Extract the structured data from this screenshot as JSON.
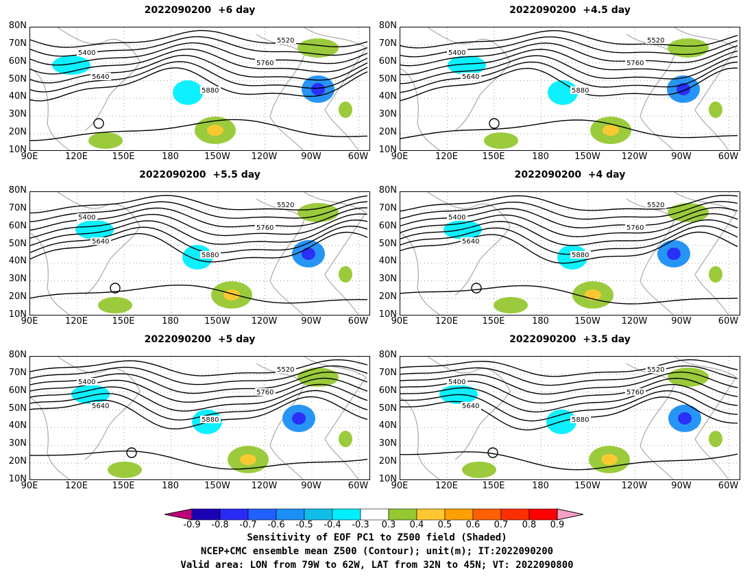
{
  "panels": [
    {
      "title": "2022090200  +6 day"
    },
    {
      "title": "2022090200  +4.5 day"
    },
    {
      "title": "2022090200  +5.5 day"
    },
    {
      "title": "2022090200  +4 day"
    },
    {
      "title": "2022090200  +5 day"
    },
    {
      "title": "2022090200  +3.5 day"
    }
  ],
  "lat_labels": [
    "80N",
    "70N",
    "60N",
    "50N",
    "40N",
    "30N",
    "20N",
    "10N"
  ],
  "lon_labels": [
    "90E",
    "120E",
    "150E",
    "180",
    "150W",
    "120W",
    "90W",
    "60W"
  ],
  "contour_labels": [
    "5400",
    "5520",
    "5640",
    "5760",
    "5880"
  ],
  "colorbar": {
    "ticks": [
      "-0.9",
      "-0.8",
      "-0.7",
      "-0.6",
      "-0.5",
      "-0.4",
      "-0.3",
      "0.3",
      "0.4",
      "0.5",
      "0.6",
      "0.7",
      "0.8",
      "0.9"
    ],
    "colors": [
      "#c0007a",
      "#1b00b4",
      "#2a2af5",
      "#2060ff",
      "#1b8ff5",
      "#10bde8",
      "#00efff",
      "#ffffff",
      "#96c832",
      "#ffc832",
      "#ffa000",
      "#ff6000",
      "#ff2e00",
      "#ff0000",
      "#f8a0c8"
    ]
  },
  "caption": {
    "line1": "Sensitivity of EOF PC1 to Z500 field (Shaded)",
    "line2": "NCEP+CMC ensemble mean Z500 (Contour); unit(m); IT:2022090200",
    "line3": "Valid area: LON from 79W to 62W, LAT from 32N to 45N; VT: 2022090800"
  }
}
